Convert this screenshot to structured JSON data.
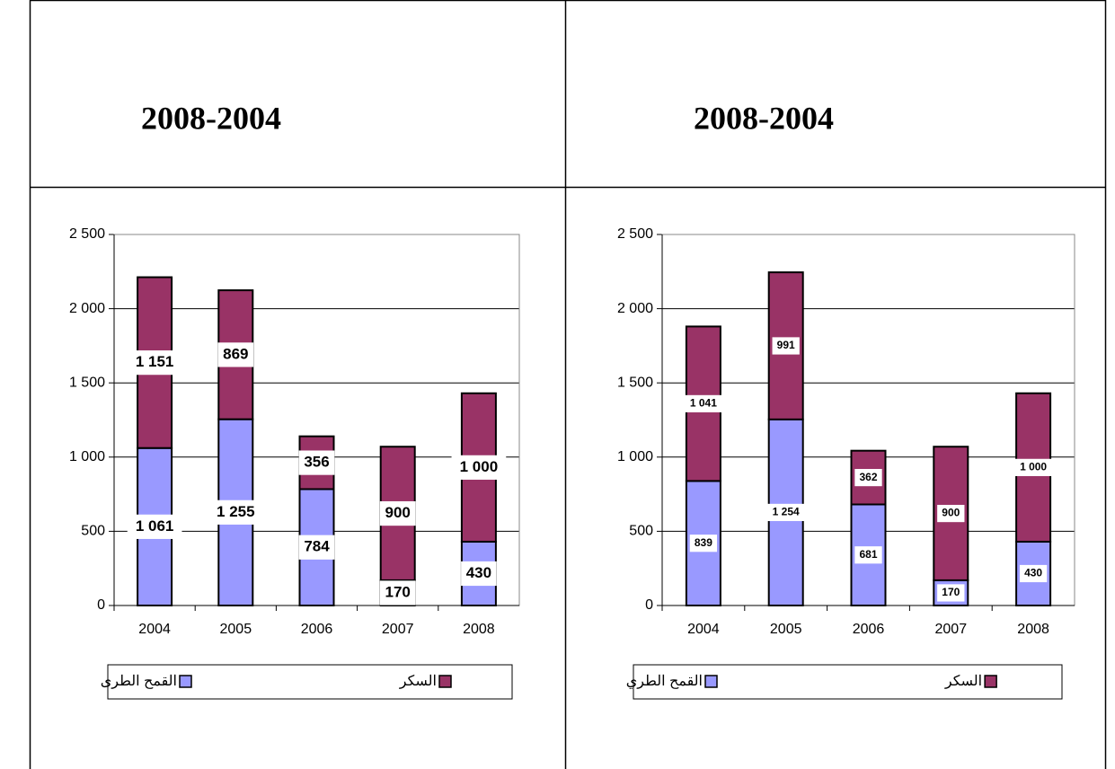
{
  "chart_data": [
    {
      "type": "stacked_bar",
      "title": "2008-2004",
      "categories": [
        "2004",
        "2005",
        "2006",
        "2007",
        "2008"
      ],
      "series": [
        {
          "name": "القمح الطرى",
          "color": "#9999ff",
          "values": [
            1061,
            1255,
            784,
            170,
            430
          ],
          "value_labels": [
            "1 061",
            "1 255",
            "784",
            "170",
            "430"
          ]
        },
        {
          "name": "السكر",
          "color": "#993366",
          "values": [
            1151,
            869,
            356,
            900,
            1000
          ],
          "value_labels": [
            "1 151",
            "869",
            "356",
            "900",
            "1 000"
          ]
        }
      ],
      "ylim": [
        0,
        2500
      ],
      "yticks": [
        0,
        500,
        {
          "value": 1000,
          "label": "1 000"
        },
        {
          "value": 1500,
          "label": "1 500"
        },
        {
          "value": 2000,
          "label": "2 000"
        },
        {
          "value": 2500,
          "label": "2 500"
        }
      ],
      "grid": true
    },
    {
      "type": "stacked_bar",
      "title": "2008-2004",
      "categories": [
        "2004",
        "2005",
        "2006",
        "2007",
        "2008"
      ],
      "series": [
        {
          "name": "القمح الطري",
          "color": "#9999ff",
          "values": [
            839,
            1254,
            681,
            170,
            430
          ],
          "value_labels": [
            "839",
            "1 254",
            "681",
            "170",
            "430"
          ]
        },
        {
          "name": "السكر",
          "color": "#993366",
          "values": [
            1041,
            991,
            362,
            900,
            1000
          ],
          "value_labels": [
            "1 041",
            "991",
            "362",
            "900",
            "1 000"
          ]
        }
      ],
      "ylim": [
        0,
        2500
      ],
      "yticks": [
        0,
        500,
        {
          "value": 1000,
          "label": "1 000"
        },
        {
          "value": 1500,
          "label": "1 500"
        },
        {
          "value": 2000,
          "label": "2 000"
        },
        {
          "value": 2500,
          "label": "2 500"
        }
      ],
      "grid": true
    }
  ]
}
